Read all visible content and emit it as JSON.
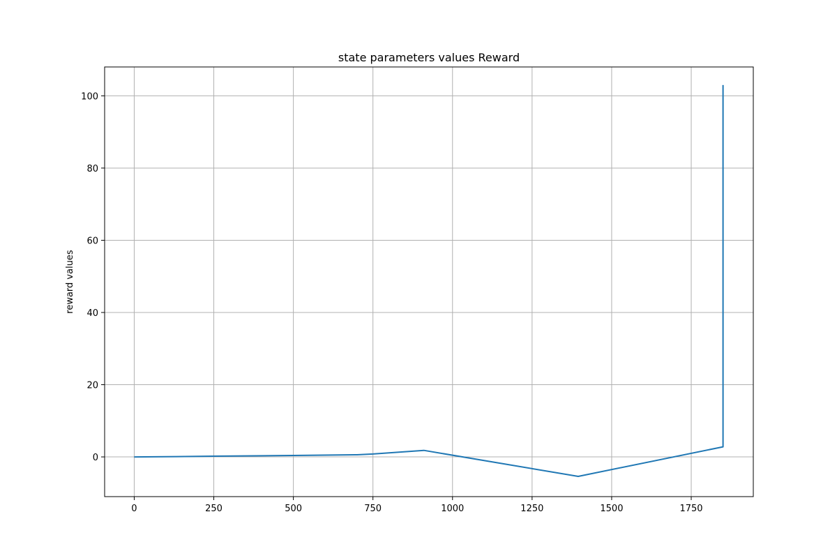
{
  "chart_data": {
    "type": "line",
    "title": "state parameters values Reward",
    "xlabel": "",
    "ylabel": "reward values",
    "xlim": [
      -93,
      1945
    ],
    "ylim": [
      -11,
      108
    ],
    "xticks": [
      0,
      250,
      500,
      750,
      1000,
      1250,
      1500,
      1750
    ],
    "xtick_labels": [
      "0",
      "250",
      "500",
      "750",
      "1000",
      "1250",
      "1500",
      "1750"
    ],
    "yticks": [
      0,
      20,
      40,
      60,
      80,
      100
    ],
    "ytick_labels": [
      "0",
      "20",
      "40",
      "60",
      "80",
      "100"
    ],
    "grid": true,
    "legend": "none",
    "series": [
      {
        "color": "#1f77b4",
        "x": [
          0,
          100,
          250,
          500,
          700,
          750,
          910,
          1395,
          1850,
          1850
        ],
        "y": [
          0,
          0.05,
          0.2,
          0.4,
          0.6,
          0.8,
          1.8,
          -5.4,
          2.8,
          103
        ]
      }
    ]
  }
}
